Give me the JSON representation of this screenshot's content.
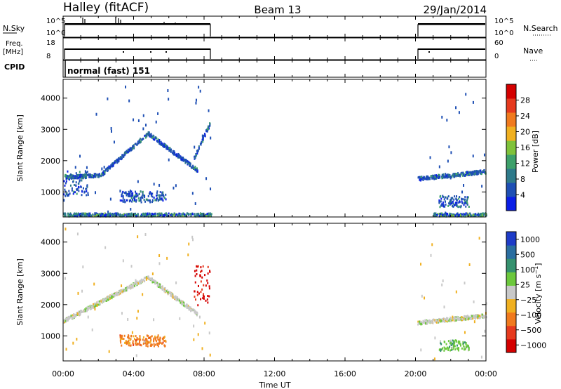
{
  "header": {
    "station": "Halley (fitACF)",
    "beam": "Beam 13",
    "date": "29/Jan/2014"
  },
  "top_panels": {
    "nsky_label": "N.Sky",
    "nsearch_label": "N.Search",
    "nsky_ticks": [
      "10^5",
      "10^0"
    ],
    "nsearch_ticks": [
      "10^5",
      "10^0"
    ],
    "freq_label": "Freq.",
    "freq_unit": "[MHz]",
    "freq_ticks": [
      "18",
      "8"
    ],
    "nave_label": "Nave",
    "nave_ticks": [
      "60",
      "0"
    ],
    "cpid_label": "CPID",
    "cpid_value": "normal (fast) 151"
  },
  "x_axis": {
    "label": "Time UT",
    "ticks": [
      "00:00",
      "04:00",
      "08:00",
      "12:00",
      "16:00",
      "20:00",
      "00:00"
    ]
  },
  "chart_data": [
    {
      "type": "heatmap",
      "panel": "power",
      "ylabel": "Slant Range [km]",
      "yticks": [
        1000,
        2000,
        3000,
        4000
      ],
      "ylim": [
        200,
        4600
      ],
      "xlim_hours": [
        0,
        24
      ],
      "colorbar_label": "Power [dB]",
      "colorbar_ticks": [
        "4",
        "8",
        "12",
        "16",
        "20",
        "24",
        "28"
      ],
      "colorscale": [
        "#0a1ee6",
        "#1e4fb4",
        "#2e7a8a",
        "#3da06a",
        "#7fc23a",
        "#f0b020",
        "#f07a1e",
        "#e63a1e",
        "#d40000"
      ],
      "data_intervals_hours": [
        [
          0,
          8.4
        ],
        [
          20.1,
          24
        ]
      ],
      "features": [
        {
          "desc": "band",
          "start_h": 0.0,
          "end_h": 2.1,
          "range_km": [
            1500,
            1560
          ]
        },
        {
          "desc": "band",
          "start_h": 2.1,
          "end_h": 4.8,
          "range_km": [
            1560,
            2900
          ]
        },
        {
          "desc": "band",
          "start_h": 4.8,
          "end_h": 7.6,
          "range_km": [
            2900,
            1720
          ]
        },
        {
          "desc": "band",
          "start_h": 7.4,
          "end_h": 8.3,
          "range_km": [
            2100,
            3200
          ]
        },
        {
          "desc": "patch",
          "start_h": 3.2,
          "end_h": 5.8,
          "range_km": [
            700,
            1050
          ]
        },
        {
          "desc": "patch",
          "start_h": 0.0,
          "end_h": 1.4,
          "range_km": [
            900,
            1700
          ]
        },
        {
          "desc": "near-range",
          "start_h": 0.0,
          "end_h": 8.4,
          "range_km": [
            250,
            350
          ]
        },
        {
          "desc": "band",
          "start_h": 20.1,
          "end_h": 24,
          "range_km": [
            1450,
            1680
          ]
        },
        {
          "desc": "patch",
          "start_h": 21.3,
          "end_h": 23.0,
          "range_km": [
            550,
            900
          ]
        },
        {
          "desc": "near-range",
          "start_h": 21.0,
          "end_h": 24,
          "range_km": [
            250,
            350
          ]
        }
      ]
    },
    {
      "type": "heatmap",
      "panel": "velocity",
      "ylabel": "Slant Range [km]",
      "yticks": [
        1000,
        2000,
        3000,
        4000
      ],
      "ylim": [
        200,
        4600
      ],
      "xlim_hours": [
        0,
        24
      ],
      "colorbar_label": "Velocity [m s^-1]",
      "colorbar_ticks": [
        "1000",
        "500",
        "100",
        "25",
        "−25",
        "−100",
        "−500",
        "−1000"
      ],
      "colorscale": [
        "#1e3cc8",
        "#2a6ea0",
        "#35916e",
        "#6cc83c",
        "#c8c8c8",
        "#f0b020",
        "#f07a1e",
        "#e63a1e",
        "#d40000"
      ],
      "data_intervals_hours": [
        [
          0,
          8.4
        ],
        [
          20.1,
          24
        ]
      ],
      "features": [
        {
          "desc": "band",
          "start_h": 0.0,
          "end_h": 4.8,
          "range_km": [
            1500,
            2900
          ],
          "velocity": "near zero"
        },
        {
          "desc": "band",
          "start_h": 4.8,
          "end_h": 7.6,
          "range_km": [
            2900,
            1720
          ],
          "velocity": "near zero"
        },
        {
          "desc": "patch",
          "start_h": 3.2,
          "end_h": 5.8,
          "range_km": [
            700,
            1050
          ],
          "velocity": "negative"
        },
        {
          "desc": "patch",
          "start_h": 7.4,
          "end_h": 8.3,
          "range_km": [
            2000,
            3300
          ],
          "velocity": "strongly negative"
        },
        {
          "desc": "band",
          "start_h": 20.1,
          "end_h": 24,
          "range_km": [
            1450,
            1680
          ],
          "velocity": "near zero"
        },
        {
          "desc": "patch",
          "start_h": 21.3,
          "end_h": 23.0,
          "range_km": [
            550,
            900
          ],
          "velocity": "positive"
        }
      ]
    }
  ]
}
